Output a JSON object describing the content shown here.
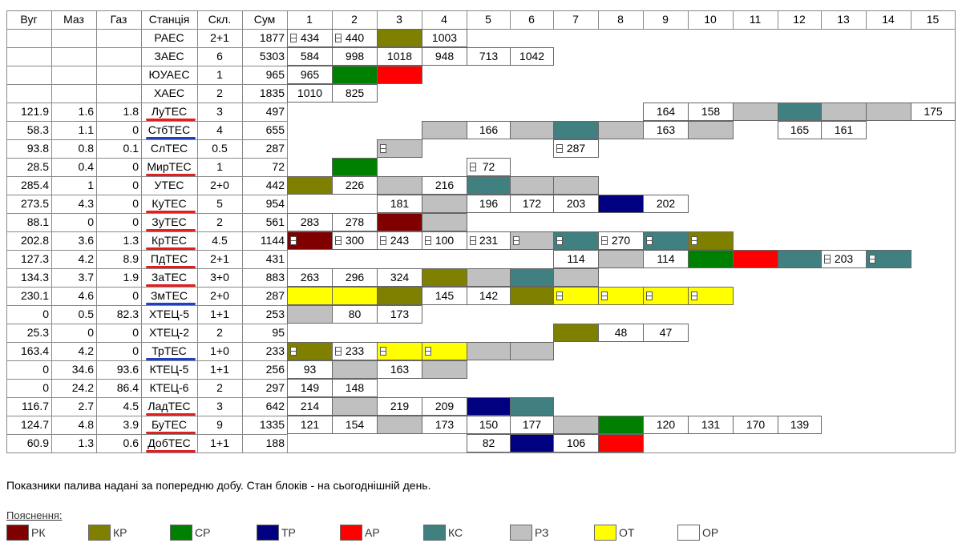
{
  "headers": [
    "Вуг",
    "Маз",
    "Газ",
    "Станція",
    "Скл.",
    "Сум",
    "1",
    "2",
    "3",
    "4",
    "5",
    "6",
    "7",
    "8",
    "9",
    "10",
    "11",
    "12",
    "13",
    "14",
    "15"
  ],
  "colors": {
    "PK": "#800000",
    "KP": "#808000",
    "CP": "#008000",
    "TP": "#000080",
    "AP": "#ff0000",
    "KC": "#408080",
    "P3": "#c0c0c0",
    "OT": "#ffff00",
    "OP": "#ffffff"
  },
  "underline_colors": {
    "red": "#e02020",
    "blue": "#2040c0"
  },
  "rows": [
    {
      "vug": "",
      "maz": "",
      "gaz": "",
      "station": "РАЕС",
      "skl": "2+1",
      "sum": "1877",
      "ul": "",
      "blocks": [
        {
          "b": 1,
          "s": "OP",
          "t": "434",
          "m": 1
        },
        {
          "b": 2,
          "s": "OP",
          "t": "440",
          "m": 1
        },
        {
          "b": 3,
          "s": "KP",
          "t": ""
        },
        {
          "b": 4,
          "s": "OP",
          "t": "1003"
        }
      ]
    },
    {
      "vug": "",
      "maz": "",
      "gaz": "",
      "station": "ЗАЕС",
      "skl": "6",
      "sum": "5303",
      "ul": "",
      "blocks": [
        {
          "b": 1,
          "s": "OP",
          "t": "584"
        },
        {
          "b": 2,
          "s": "OP",
          "t": "998"
        },
        {
          "b": 3,
          "s": "OP",
          "t": "1018"
        },
        {
          "b": 4,
          "s": "OP",
          "t": "948"
        },
        {
          "b": 5,
          "s": "OP",
          "t": "713"
        },
        {
          "b": 6,
          "s": "OP",
          "t": "1042"
        }
      ]
    },
    {
      "vug": "",
      "maz": "",
      "gaz": "",
      "station": "ЮУАЕС",
      "skl": "1",
      "sum": "965",
      "ul": "",
      "blocks": [
        {
          "b": 1,
          "s": "OP",
          "t": "965"
        },
        {
          "b": 2,
          "s": "CP",
          "t": ""
        },
        {
          "b": 3,
          "s": "AP",
          "t": ""
        }
      ]
    },
    {
      "vug": "",
      "maz": "",
      "gaz": "",
      "station": "ХАЕС",
      "skl": "2",
      "sum": "1835",
      "ul": "",
      "blocks": [
        {
          "b": 1,
          "s": "OP",
          "t": "1010"
        },
        {
          "b": 2,
          "s": "OP",
          "t": "825"
        }
      ]
    },
    {
      "vug": "121.9",
      "maz": "1.6",
      "gaz": "1.8",
      "station": "ЛуТЕС",
      "skl": "3",
      "sum": "497",
      "ul": "red",
      "blocks": [
        {
          "b": 9,
          "s": "OP",
          "t": "164"
        },
        {
          "b": 10,
          "s": "OP",
          "t": "158"
        },
        {
          "b": 11,
          "s": "P3",
          "t": ""
        },
        {
          "b": 12,
          "s": "KC",
          "t": ""
        },
        {
          "b": 13,
          "s": "P3",
          "t": ""
        },
        {
          "b": 14,
          "s": "P3",
          "t": ""
        },
        {
          "b": 15,
          "s": "OP",
          "t": "175"
        }
      ]
    },
    {
      "vug": "58.3",
      "maz": "1.1",
      "gaz": "0",
      "station": "СтбТЕС",
      "skl": "4",
      "sum": "655",
      "ul": "blue",
      "blocks": [
        {
          "b": 4,
          "s": "P3",
          "t": ""
        },
        {
          "b": 5,
          "s": "OP",
          "t": "166"
        },
        {
          "b": 6,
          "s": "P3",
          "t": ""
        },
        {
          "b": 7,
          "s": "KC",
          "t": ""
        },
        {
          "b": 8,
          "s": "P3",
          "t": ""
        },
        {
          "b": 9,
          "s": "OP",
          "t": "163"
        },
        {
          "b": 10,
          "s": "P3",
          "t": ""
        },
        {
          "b": 12,
          "s": "OP",
          "t": "165"
        },
        {
          "b": 13,
          "s": "OP",
          "t": "161"
        }
      ]
    },
    {
      "vug": "93.8",
      "maz": "0.8",
      "gaz": "0.1",
      "station": "СлТЕС",
      "skl": "0.5",
      "sum": "287",
      "ul": "",
      "blocks": [
        {
          "b": 3,
          "s": "P3",
          "t": "",
          "m": 1
        },
        {
          "b": 7,
          "s": "OP",
          "t": "287",
          "m": 1
        }
      ]
    },
    {
      "vug": "28.5",
      "maz": "0.4",
      "gaz": "0",
      "station": "МирТЕС",
      "skl": "1",
      "sum": "72",
      "ul": "red",
      "blocks": [
        {
          "b": 2,
          "s": "CP",
          "t": ""
        },
        {
          "b": 5,
          "s": "OP",
          "t": "72",
          "m": 1
        }
      ]
    },
    {
      "vug": "285.4",
      "maz": "1",
      "gaz": "0",
      "station": "УТЕС",
      "skl": "2+0",
      "sum": "442",
      "ul": "",
      "blocks": [
        {
          "b": 1,
          "s": "KP",
          "t": ""
        },
        {
          "b": 2,
          "s": "OP",
          "t": "226"
        },
        {
          "b": 3,
          "s": "P3",
          "t": ""
        },
        {
          "b": 4,
          "s": "OP",
          "t": "216"
        },
        {
          "b": 5,
          "s": "KC",
          "t": ""
        },
        {
          "b": 6,
          "s": "P3",
          "t": ""
        },
        {
          "b": 7,
          "s": "P3",
          "t": ""
        }
      ]
    },
    {
      "vug": "273.5",
      "maz": "4.3",
      "gaz": "0",
      "station": "КуТЕС",
      "skl": "5",
      "sum": "954",
      "ul": "red",
      "blocks": [
        {
          "b": 3,
          "s": "OP",
          "t": "181"
        },
        {
          "b": 4,
          "s": "P3",
          "t": ""
        },
        {
          "b": 5,
          "s": "OP",
          "t": "196"
        },
        {
          "b": 6,
          "s": "OP",
          "t": "172"
        },
        {
          "b": 7,
          "s": "OP",
          "t": "203"
        },
        {
          "b": 8,
          "s": "TP",
          "t": ""
        },
        {
          "b": 9,
          "s": "OP",
          "t": "202"
        }
      ]
    },
    {
      "vug": "88.1",
      "maz": "0",
      "gaz": "0",
      "station": "ЗуТЕС",
      "skl": "2",
      "sum": "561",
      "ul": "red",
      "blocks": [
        {
          "b": 1,
          "s": "OP",
          "t": "283"
        },
        {
          "b": 2,
          "s": "OP",
          "t": "278"
        },
        {
          "b": 3,
          "s": "PK",
          "t": ""
        },
        {
          "b": 4,
          "s": "P3",
          "t": ""
        }
      ]
    },
    {
      "vug": "202.8",
      "maz": "3.6",
      "gaz": "1.3",
      "station": "КрТЕС",
      "skl": "4.5",
      "sum": "1144",
      "ul": "red",
      "blocks": [
        {
          "b": 1,
          "s": "PK",
          "t": "",
          "m": 1
        },
        {
          "b": 2,
          "s": "OP",
          "t": "300",
          "m": 1
        },
        {
          "b": 3,
          "s": "OP",
          "t": "243",
          "m": 1
        },
        {
          "b": 4,
          "s": "OP",
          "t": "100",
          "m": 1
        },
        {
          "b": 5,
          "s": "OP",
          "t": "231",
          "m": 1
        },
        {
          "b": 6,
          "s": "P3",
          "t": "",
          "m": 1
        },
        {
          "b": 7,
          "s": "KC",
          "t": "",
          "m": 1
        },
        {
          "b": 8,
          "s": "OP",
          "t": "270",
          "m": 1
        },
        {
          "b": 9,
          "s": "KC",
          "t": "",
          "m": 1
        },
        {
          "b": 10,
          "s": "KP",
          "t": "",
          "m": 1
        }
      ]
    },
    {
      "vug": "127.3",
      "maz": "4.2",
      "gaz": "8.9",
      "station": "ПдТЕС",
      "skl": "2+1",
      "sum": "431",
      "ul": "red",
      "blocks": [
        {
          "b": 7,
          "s": "OP",
          "t": "114"
        },
        {
          "b": 8,
          "s": "P3",
          "t": ""
        },
        {
          "b": 9,
          "s": "OP",
          "t": "114"
        },
        {
          "b": 10,
          "s": "CP",
          "t": ""
        },
        {
          "b": 11,
          "s": "AP",
          "t": ""
        },
        {
          "b": 12,
          "s": "KC",
          "t": ""
        },
        {
          "b": 13,
          "s": "OP",
          "t": "203",
          "m": 1
        },
        {
          "b": 14,
          "s": "KC",
          "t": "",
          "m": 1
        }
      ]
    },
    {
      "vug": "134.3",
      "maz": "3.7",
      "gaz": "1.9",
      "station": "ЗаТЕС",
      "skl": "3+0",
      "sum": "883",
      "ul": "red",
      "blocks": [
        {
          "b": 1,
          "s": "OP",
          "t": "263"
        },
        {
          "b": 2,
          "s": "OP",
          "t": "296"
        },
        {
          "b": 3,
          "s": "OP",
          "t": "324"
        },
        {
          "b": 4,
          "s": "KP",
          "t": ""
        },
        {
          "b": 5,
          "s": "P3",
          "t": ""
        },
        {
          "b": 6,
          "s": "KC",
          "t": ""
        },
        {
          "b": 7,
          "s": "P3",
          "t": ""
        }
      ]
    },
    {
      "vug": "230.1",
      "maz": "4.6",
      "gaz": "0",
      "station": "ЗмТЕС",
      "skl": "2+0",
      "sum": "287",
      "ul": "blue",
      "blocks": [
        {
          "b": 1,
          "s": "OT",
          "t": ""
        },
        {
          "b": 2,
          "s": "OT",
          "t": ""
        },
        {
          "b": 3,
          "s": "KP",
          "t": ""
        },
        {
          "b": 4,
          "s": "OP",
          "t": "145"
        },
        {
          "b": 5,
          "s": "OP",
          "t": "142"
        },
        {
          "b": 6,
          "s": "KP",
          "t": ""
        },
        {
          "b": 7,
          "s": "OT",
          "t": "",
          "m": 1
        },
        {
          "b": 8,
          "s": "OT",
          "t": "",
          "m": 1
        },
        {
          "b": 9,
          "s": "OT",
          "t": "",
          "m": 1
        },
        {
          "b": 10,
          "s": "OT",
          "t": "",
          "m": 1
        }
      ]
    },
    {
      "vug": "0",
      "maz": "0.5",
      "gaz": "82.3",
      "station": "ХТЕЦ-5",
      "skl": "1+1",
      "sum": "253",
      "ul": "",
      "blocks": [
        {
          "b": 1,
          "s": "P3",
          "t": ""
        },
        {
          "b": 2,
          "s": "OP",
          "t": "80"
        },
        {
          "b": 3,
          "s": "OP",
          "t": "173"
        }
      ]
    },
    {
      "vug": "25.3",
      "maz": "0",
      "gaz": "0",
      "station": "ХТЕЦ-2",
      "skl": "2",
      "sum": "95",
      "ul": "",
      "blocks": [
        {
          "b": 7,
          "s": "KP",
          "t": ""
        },
        {
          "b": 8,
          "s": "OP",
          "t": "48"
        },
        {
          "b": 9,
          "s": "OP",
          "t": "47"
        }
      ]
    },
    {
      "vug": "163.4",
      "maz": "4.2",
      "gaz": "0",
      "station": "ТрТЕС",
      "skl": "1+0",
      "sum": "233",
      "ul": "blue",
      "blocks": [
        {
          "b": 1,
          "s": "KP",
          "t": "",
          "m": 1
        },
        {
          "b": 2,
          "s": "OP",
          "t": "233",
          "m": 1
        },
        {
          "b": 3,
          "s": "OT",
          "t": "",
          "m": 1
        },
        {
          "b": 4,
          "s": "OT",
          "t": "",
          "m": 1
        },
        {
          "b": 5,
          "s": "P3",
          "t": ""
        },
        {
          "b": 6,
          "s": "P3",
          "t": ""
        }
      ]
    },
    {
      "vug": "0",
      "maz": "34.6",
      "gaz": "93.6",
      "station": "КТЕЦ-5",
      "skl": "1+1",
      "sum": "256",
      "ul": "",
      "blocks": [
        {
          "b": 1,
          "s": "OP",
          "t": "93"
        },
        {
          "b": 2,
          "s": "P3",
          "t": ""
        },
        {
          "b": 3,
          "s": "OP",
          "t": "163"
        },
        {
          "b": 4,
          "s": "P3",
          "t": ""
        }
      ]
    },
    {
      "vug": "0",
      "maz": "24.2",
      "gaz": "86.4",
      "station": "КТЕЦ-6",
      "skl": "2",
      "sum": "297",
      "ul": "",
      "blocks": [
        {
          "b": 1,
          "s": "OP",
          "t": "149"
        },
        {
          "b": 2,
          "s": "OP",
          "t": "148"
        }
      ]
    },
    {
      "vug": "116.7",
      "maz": "2.7",
      "gaz": "4.5",
      "station": "ЛадТЕС",
      "skl": "3",
      "sum": "642",
      "ul": "red",
      "blocks": [
        {
          "b": 1,
          "s": "OP",
          "t": "214"
        },
        {
          "b": 2,
          "s": "P3",
          "t": ""
        },
        {
          "b": 3,
          "s": "OP",
          "t": "219"
        },
        {
          "b": 4,
          "s": "OP",
          "t": "209"
        },
        {
          "b": 5,
          "s": "TP",
          "t": ""
        },
        {
          "b": 6,
          "s": "KC",
          "t": ""
        }
      ]
    },
    {
      "vug": "124.7",
      "maz": "4.8",
      "gaz": "3.9",
      "station": "БуТЕС",
      "skl": "9",
      "sum": "1335",
      "ul": "red",
      "blocks": [
        {
          "b": 1,
          "s": "OP",
          "t": "121"
        },
        {
          "b": 2,
          "s": "OP",
          "t": "154"
        },
        {
          "b": 3,
          "s": "P3",
          "t": ""
        },
        {
          "b": 4,
          "s": "OP",
          "t": "173"
        },
        {
          "b": 5,
          "s": "OP",
          "t": "150"
        },
        {
          "b": 6,
          "s": "OP",
          "t": "177"
        },
        {
          "b": 7,
          "s": "P3",
          "t": ""
        },
        {
          "b": 8,
          "s": "CP",
          "t": ""
        },
        {
          "b": 9,
          "s": "OP",
          "t": "120"
        },
        {
          "b": 10,
          "s": "OP",
          "t": "131"
        },
        {
          "b": 11,
          "s": "OP",
          "t": "170"
        },
        {
          "b": 12,
          "s": "OP",
          "t": "139"
        }
      ]
    },
    {
      "vug": "60.9",
      "maz": "1.3",
      "gaz": "0.6",
      "station": "ДобТЕС",
      "skl": "1+1",
      "sum": "188",
      "ul": "red",
      "blocks": [
        {
          "b": 5,
          "s": "OP",
          "t": "82"
        },
        {
          "b": 6,
          "s": "TP",
          "t": ""
        },
        {
          "b": 7,
          "s": "OP",
          "t": "106"
        },
        {
          "b": 8,
          "s": "AP",
          "t": ""
        }
      ]
    }
  ],
  "note": "Показники палива надані за попередню добу. Стан блоків - на сьогоднішній день.",
  "legend_title": "Пояснення:",
  "legend": [
    {
      "code": "PK",
      "label": "РК"
    },
    {
      "code": "KP",
      "label": "КР"
    },
    {
      "code": "CP",
      "label": "СР"
    },
    {
      "code": "TP",
      "label": "ТР"
    },
    {
      "code": "AP",
      "label": "АР"
    },
    {
      "code": "KC",
      "label": "КС"
    },
    {
      "code": "P3",
      "label": "РЗ"
    },
    {
      "code": "OT",
      "label": "ОТ"
    },
    {
      "code": "OP",
      "label": "ОР"
    }
  ]
}
